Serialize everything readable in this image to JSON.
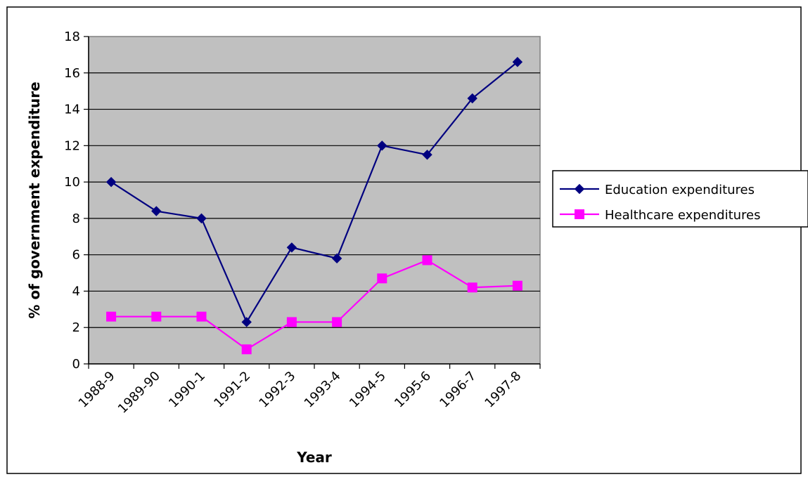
{
  "chart_data": {
    "type": "line",
    "title": "",
    "xlabel": "Year",
    "ylabel": "% of government expenditure",
    "categories": [
      "1988-9",
      "1989-90",
      "1990-1",
      "1991-2",
      "1992-3",
      "1993-4",
      "1994-5",
      "1995-6",
      "1996-7",
      "1997-8"
    ],
    "ylim": [
      0,
      18
    ],
    "yticks": [
      0,
      2,
      4,
      6,
      8,
      10,
      12,
      14,
      16,
      18
    ],
    "grid": "horizontal",
    "legend": "right",
    "plot_background": "#c0c0c0",
    "series": [
      {
        "name": "Education expenditures",
        "color": "#000080",
        "marker": "diamond",
        "values": [
          10.0,
          8.4,
          8.0,
          2.3,
          6.4,
          5.8,
          12.0,
          11.5,
          14.6,
          16.6
        ]
      },
      {
        "name": "Healthcare expenditures",
        "color": "#ff00ff",
        "marker": "square",
        "values": [
          2.6,
          2.6,
          2.6,
          0.8,
          2.3,
          2.3,
          4.7,
          5.7,
          4.2,
          4.3
        ]
      }
    ]
  }
}
